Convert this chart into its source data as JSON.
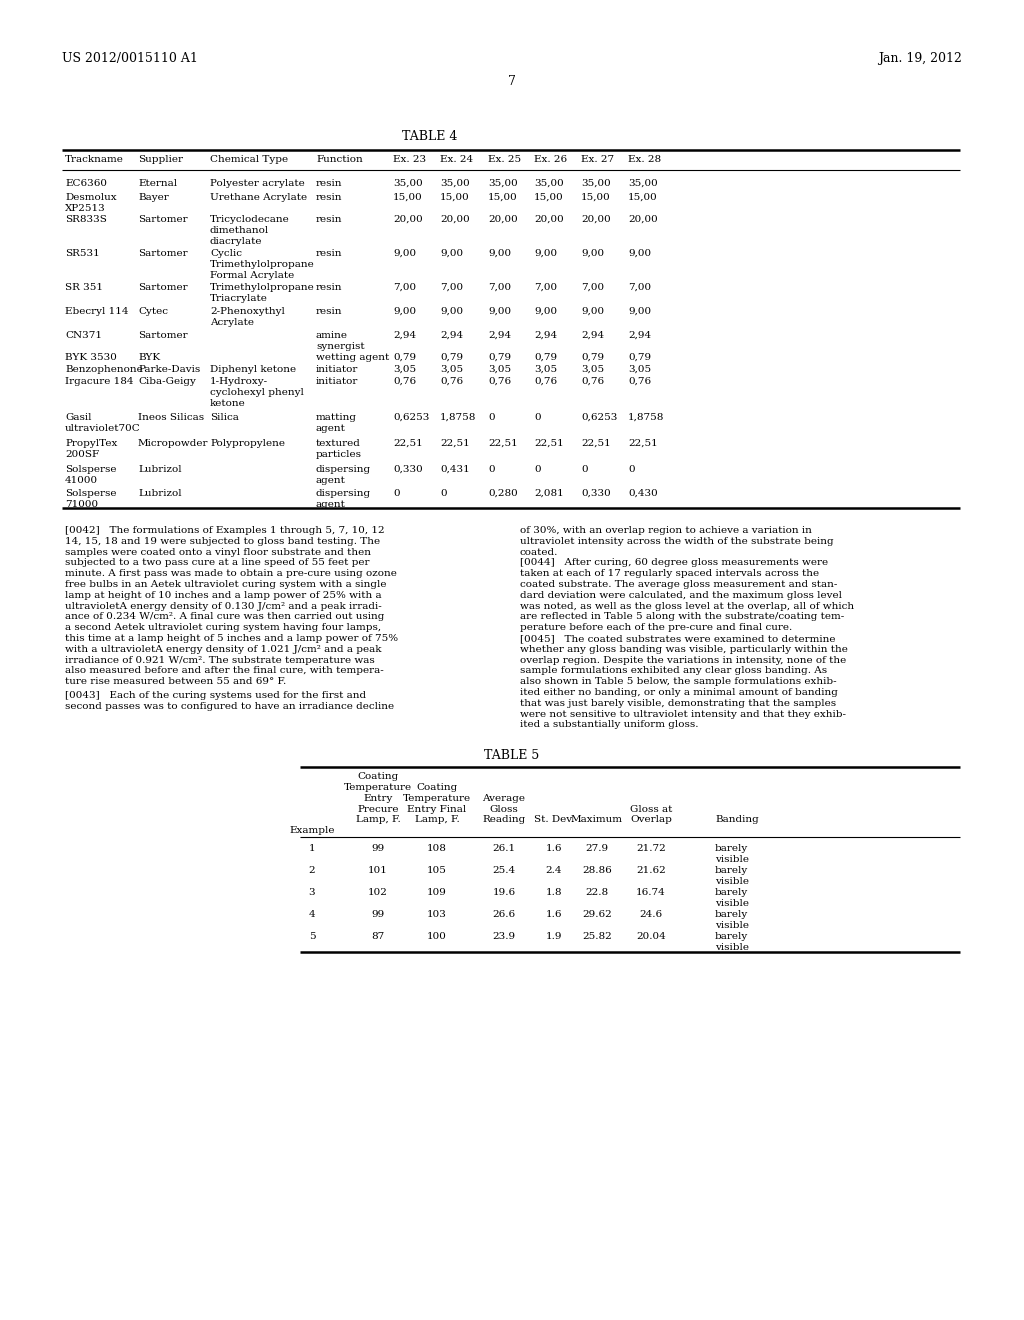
{
  "header_left": "US 2012/0015110 A1",
  "header_right": "Jan. 19, 2012",
  "page_number": "7",
  "table4_title": "TABLE 4",
  "table4_columns": [
    "Trackname",
    "Supplier",
    "Chemical Type",
    "Function",
    "Ex. 23",
    "Ex. 24",
    "Ex. 25",
    "Ex. 26",
    "Ex. 27",
    "Ex. 28"
  ],
  "table4_rows": [
    [
      "EC6360",
      "Eternal",
      "Polyester acrylate",
      "resin",
      "35,00",
      "35,00",
      "35,00",
      "35,00",
      "35,00",
      "35,00"
    ],
    [
      "Desmolux\nXP2513",
      "Bayer",
      "Urethane Acrylate",
      "resin",
      "15,00",
      "15,00",
      "15,00",
      "15,00",
      "15,00",
      "15,00"
    ],
    [
      "SR833S",
      "Sartomer",
      "Tricyclodecane\ndimethanol\ndiacrylate",
      "resin",
      "20,00",
      "20,00",
      "20,00",
      "20,00",
      "20,00",
      "20,00"
    ],
    [
      "SR531",
      "Sartomer",
      "Cyclic\nTrimethylolpropane\nFormal Acrylate",
      "resin",
      "9,00",
      "9,00",
      "9,00",
      "9,00",
      "9,00",
      "9,00"
    ],
    [
      "SR 351",
      "Sartomer",
      "Trimethylolpropane\nTriacrylate",
      "resin",
      "7,00",
      "7,00",
      "7,00",
      "7,00",
      "7,00",
      "7,00"
    ],
    [
      "Ebecryl 114",
      "Cytec",
      "2-Phenoxythyl\nAcrylate",
      "resin",
      "9,00",
      "9,00",
      "9,00",
      "9,00",
      "9,00",
      "9,00"
    ],
    [
      "CN371",
      "Sartomer",
      "",
      "amine\nsynergist",
      "2,94",
      "2,94",
      "2,94",
      "2,94",
      "2,94",
      "2,94"
    ],
    [
      "BYK 3530",
      "BYK",
      "",
      "wetting agent",
      "0,79",
      "0,79",
      "0,79",
      "0,79",
      "0,79",
      "0,79"
    ],
    [
      "Benzophenone",
      "Parke-Davis",
      "Diphenyl ketone",
      "initiator",
      "3,05",
      "3,05",
      "3,05",
      "3,05",
      "3,05",
      "3,05"
    ],
    [
      "Irgacure 184",
      "Ciba-Geigy",
      "1-Hydroxy-\ncyclohexyl phenyl\nketone",
      "initiator",
      "0,76",
      "0,76",
      "0,76",
      "0,76",
      "0,76",
      "0,76"
    ],
    [
      "Gasil\nultraviolet70C",
      "Ineos Silicas",
      "Silica",
      "matting\nagent",
      "0,6253",
      "1,8758",
      "0",
      "0",
      "0,6253",
      "1,8758"
    ],
    [
      "PropylTex\n200SF",
      "Micropowder",
      "Polypropylene",
      "textured\nparticles",
      "22,51",
      "22,51",
      "22,51",
      "22,51",
      "22,51",
      "22,51"
    ],
    [
      "Solsperse\n41000",
      "Lubrizol",
      "",
      "dispersing\nagent",
      "0,330",
      "0,431",
      "0",
      "0",
      "0",
      "0"
    ],
    [
      "Solsperse\n71000",
      "Lubrizol",
      "",
      "dispersing\nagent",
      "0",
      "0",
      "0,280",
      "2,081",
      "0,330",
      "0,430"
    ]
  ],
  "para0042_lines": [
    "[0042]   The formulations of Examples 1 through 5, 7, 10, 12",
    "14, 15, 18 and 19 were subjected to gloss band testing. The",
    "samples were coated onto a vinyl floor substrate and then",
    "subjected to a two pass cure at a line speed of 55 feet per",
    "minute. A first pass was made to obtain a pre-cure using ozone",
    "free bulbs in an Aetek ultraviolet curing system with a single",
    "lamp at height of 10 inches and a lamp power of 25% with a",
    "ultravioletA energy density of 0.130 J/cm² and a peak irradi-",
    "ance of 0.234 W/cm². A final cure was then carried out using",
    "a second Aetek ultraviolet curing system having four lamps,",
    "this time at a lamp height of 5 inches and a lamp power of 75%",
    "with a ultravioletA energy density of 1.021 J/cm² and a peak",
    "irradiance of 0.921 W/cm². The substrate temperature was",
    "also measured before and after the final cure, with tempera-",
    "ture rise measured between 55 and 69° F."
  ],
  "para0043_lines": [
    "[0043]   Each of the curing systems used for the first and",
    "second passes was to configured to have an irradiance decline"
  ],
  "right_col_lines": [
    "of 30%, with an overlap region to achieve a variation in",
    "ultraviolet intensity across the width of the substrate being",
    "coated.",
    "[0044]   After curing, 60 degree gloss measurements were",
    "taken at each of 17 regularly spaced intervals across the",
    "coated substrate. The average gloss measurement and stan-",
    "dard deviation were calculated, and the maximum gloss level",
    "was noted, as well as the gloss level at the overlap, all of which",
    "are reflected in Table 5 along with the substrate/coating tem-",
    "perature before each of the pre-cure and final cure.",
    "[0045]   The coated substrates were examined to determine",
    "whether any gloss banding was visible, particularly within the",
    "overlap region. Despite the variations in intensity, none of the",
    "sample formulations exhibited any clear gloss banding. As",
    "also shown in Table 5 below, the sample formulations exhib-",
    "ited either no banding, or only a minimal amount of banding",
    "that was just barely visible, demonstrating that the samples",
    "were not sensitive to ultraviolet intensity and that they exhib-",
    "ited a substantially uniform gloss."
  ],
  "table5_title": "TABLE 5",
  "table5_col_headers": [
    [
      "",
      "",
      "",
      "",
      "",
      "",
      "",
      ""
    ],
    [
      "",
      "Coating",
      "Coating",
      "Average",
      "",
      "",
      "Gloss at",
      ""
    ],
    [
      "",
      "Temperature",
      "Temperature",
      "Gloss",
      "",
      "",
      "Overlap",
      ""
    ],
    [
      "",
      "Entry",
      "Entry Final",
      "Reading",
      "St. Dev.",
      "Maximum",
      "",
      "Banding"
    ],
    [
      "",
      "Precure",
      "Lamp, F.",
      "",
      "",
      "",
      "",
      ""
    ],
    [
      "Example",
      "Lamp, F.",
      "",
      "",
      "",
      "",
      "",
      ""
    ]
  ],
  "table5_rows": [
    [
      "1",
      "99",
      "108",
      "26.1",
      "1.6",
      "27.9",
      "21.72",
      "barely\nvisible"
    ],
    [
      "2",
      "101",
      "105",
      "25.4",
      "2.4",
      "28.86",
      "21.62",
      "barely\nvisible"
    ],
    [
      "3",
      "102",
      "109",
      "19.6",
      "1.8",
      "22.8",
      "16.74",
      "barely\nvisible"
    ],
    [
      "4",
      "99",
      "103",
      "26.6",
      "1.6",
      "29.62",
      "24.6",
      "barely\nvisible"
    ],
    [
      "5",
      "87",
      "100",
      "23.9",
      "1.9",
      "25.82",
      "20.04",
      "barely\nvisible"
    ]
  ],
  "bg_color": "#ffffff",
  "text_color": "#000000"
}
